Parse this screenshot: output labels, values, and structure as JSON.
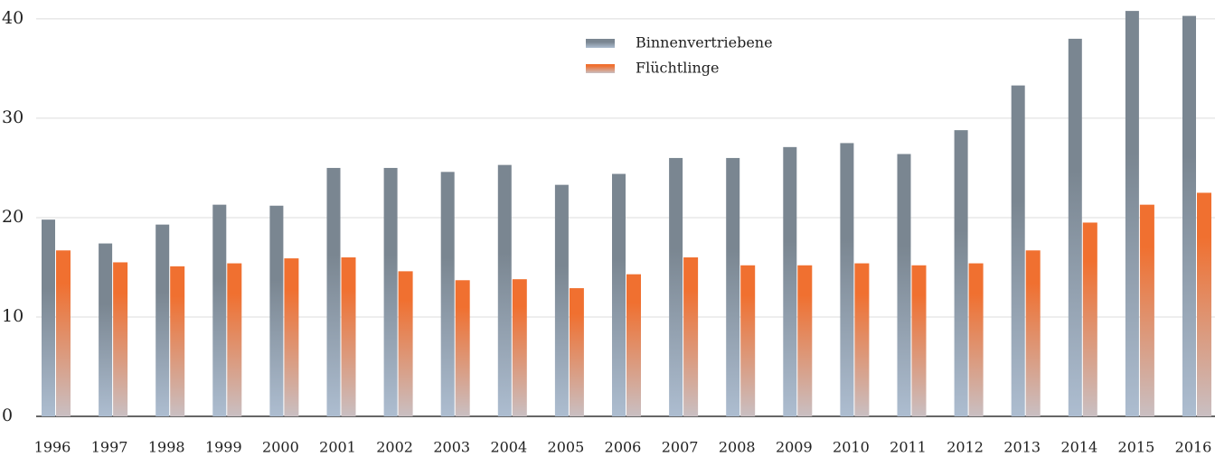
{
  "chart_data": {
    "type": "bar",
    "categories": [
      "1996",
      "1997",
      "1998",
      "1999",
      "2000",
      "2001",
      "2002",
      "2003",
      "2004",
      "2005",
      "2006",
      "2007",
      "2008",
      "2009",
      "2010",
      "2011",
      "2012",
      "2013",
      "2014",
      "2015",
      "2016"
    ],
    "series": [
      {
        "name": "Binnenvertriebene",
        "color": "#7a8691",
        "values": [
          19.8,
          17.4,
          19.3,
          21.3,
          21.2,
          25.0,
          25.0,
          24.6,
          25.3,
          23.3,
          24.4,
          26.0,
          26.0,
          27.1,
          27.5,
          26.4,
          28.8,
          33.3,
          38.0,
          40.8,
          40.3
        ]
      },
      {
        "name": "Flüchtlinge",
        "color": "#f07030",
        "values": [
          16.7,
          15.5,
          15.1,
          15.4,
          15.9,
          16.0,
          14.6,
          13.7,
          13.8,
          12.9,
          14.3,
          16.0,
          15.2,
          15.2,
          15.4,
          15.2,
          15.4,
          16.7,
          19.5,
          21.3,
          22.5
        ]
      }
    ],
    "ylim": [
      0,
      41.9
    ],
    "yticks": [
      0,
      10,
      20,
      30,
      40
    ],
    "grid": true
  }
}
